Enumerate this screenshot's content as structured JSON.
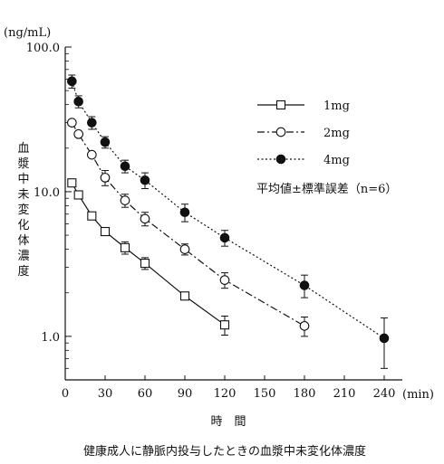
{
  "chart_data": {
    "type": "line",
    "y_scale": "log",
    "ylim": [
      0.5,
      100
    ],
    "xlim": [
      0,
      240
    ],
    "yunit": "(ng/mL)",
    "ylabel": "血漿中未変化体濃度",
    "xlabel": "時　間",
    "xunit": "(min)",
    "x_ticks": [
      0,
      30,
      60,
      90,
      120,
      150,
      180,
      210,
      240
    ],
    "y_ticks": [
      {
        "value": 100,
        "label": "100.0"
      },
      {
        "value": 10,
        "label": "10.0"
      },
      {
        "value": 1,
        "label": "1.0"
      }
    ],
    "legend_note": "平均値±標準誤差（n=6）",
    "caption": "健康成人に静脈内投与したときの血漿中未変化体濃度",
    "series": [
      {
        "name": "1mg",
        "style": "solid",
        "marker": "open-square",
        "points": [
          {
            "x": 5,
            "y": 11.5,
            "err": 0
          },
          {
            "x": 10,
            "y": 9.5,
            "err": 0
          },
          {
            "x": 20,
            "y": 6.8,
            "err": 0
          },
          {
            "x": 30,
            "y": 5.3,
            "err": 0
          },
          {
            "x": 45,
            "y": 4.1,
            "err": 0.4
          },
          {
            "x": 60,
            "y": 3.2,
            "err": 0.3
          },
          {
            "x": 90,
            "y": 1.9,
            "err": 0
          },
          {
            "x": 120,
            "y": 1.2,
            "err": 0.18
          }
        ]
      },
      {
        "name": "2mg",
        "style": "dash-dot",
        "marker": "open-circle",
        "points": [
          {
            "x": 5,
            "y": 30,
            "err": 0
          },
          {
            "x": 10,
            "y": 25,
            "err": 0
          },
          {
            "x": 20,
            "y": 18,
            "err": 0
          },
          {
            "x": 30,
            "y": 12.5,
            "err": 1.5
          },
          {
            "x": 45,
            "y": 8.7,
            "err": 0.9
          },
          {
            "x": 60,
            "y": 6.5,
            "err": 0.7
          },
          {
            "x": 90,
            "y": 4.0,
            "err": 0.35
          },
          {
            "x": 120,
            "y": 2.45,
            "err": 0.3
          },
          {
            "x": 180,
            "y": 1.18,
            "err": 0.18
          }
        ]
      },
      {
        "name": "4mg",
        "style": "dotted",
        "marker": "filled-circle",
        "points": [
          {
            "x": 5,
            "y": 58,
            "err": 6
          },
          {
            "x": 10,
            "y": 42,
            "err": 4
          },
          {
            "x": 20,
            "y": 30,
            "err": 3
          },
          {
            "x": 30,
            "y": 22,
            "err": 2
          },
          {
            "x": 45,
            "y": 15,
            "err": 1.5
          },
          {
            "x": 60,
            "y": 12,
            "err": 1.5
          },
          {
            "x": 90,
            "y": 7.2,
            "err": 1.0
          },
          {
            "x": 120,
            "y": 4.8,
            "err": 0.6
          },
          {
            "x": 180,
            "y": 2.25,
            "err": 0.4
          },
          {
            "x": 240,
            "y": 0.97,
            "err": 0.37
          }
        ]
      }
    ]
  }
}
